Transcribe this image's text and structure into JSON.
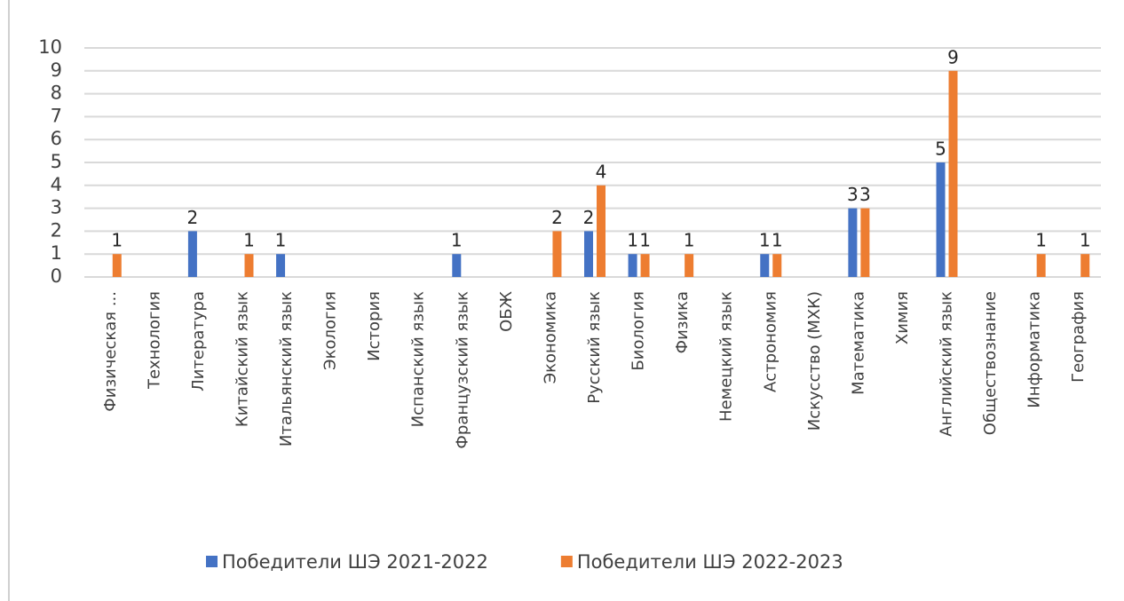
{
  "chart_data": {
    "type": "bar",
    "categories": [
      "Физическая ...",
      "Технология",
      "Литература",
      "Китайский язык",
      "Итальянский язык",
      "Экология",
      "История",
      "Испанский язык",
      "Французский язык",
      "ОБЖ",
      "Экономика",
      "Русский язык",
      "Биология",
      "Физика",
      "Немецкий язык",
      "Астрономия",
      "Искусство (МХК)",
      "Математика",
      "Химия",
      "Английский язык",
      "Обществознание",
      "Информатика",
      "География"
    ],
    "series": [
      {
        "name": "Победители ШЭ 2021-2022",
        "color": "#4472c4",
        "values": [
          null,
          null,
          2,
          null,
          1,
          null,
          null,
          null,
          1,
          null,
          null,
          2,
          1,
          null,
          null,
          1,
          null,
          3,
          null,
          5,
          null,
          null,
          null
        ]
      },
      {
        "name": "Победители ШЭ 2022-2023",
        "color": "#ed7d31",
        "values": [
          1,
          null,
          null,
          1,
          null,
          null,
          null,
          null,
          null,
          null,
          2,
          4,
          1,
          1,
          null,
          1,
          null,
          3,
          null,
          9,
          null,
          1,
          1
        ]
      }
    ],
    "ylim": [
      0,
      10
    ],
    "yticks": [
      0,
      1,
      2,
      3,
      4,
      5,
      6,
      7,
      8,
      9,
      10
    ],
    "grid": true,
    "legend": "bottom"
  }
}
